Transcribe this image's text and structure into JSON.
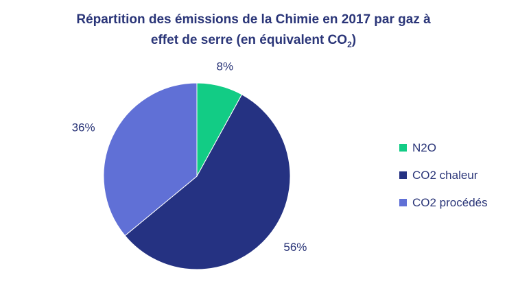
{
  "chart_data": {
    "type": "pie",
    "title_line1": "Répartition des émissions de la Chimie en 2017 par gaz à",
    "title_line2_prefix": "effet de serre (en équivalent CO",
    "title_line2_sub": "2",
    "title_line2_suffix": ")",
    "slices": [
      {
        "name": "N2O",
        "value": 8,
        "label": "8%",
        "color": "#12cc85"
      },
      {
        "name": "CO2 chaleur",
        "value": 56,
        "label": "56%",
        "color": "#253282"
      },
      {
        "name": "CO2 procédés",
        "value": 36,
        "label": "36%",
        "color": "#6070d6"
      }
    ],
    "legend_position": "right"
  }
}
